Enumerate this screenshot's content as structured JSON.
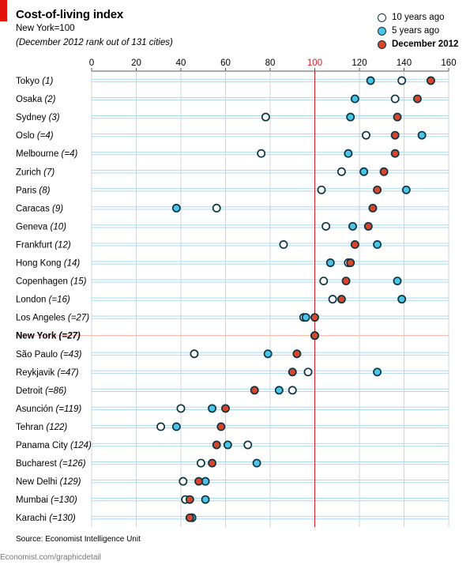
{
  "header": {
    "title": "Cost-of-living index",
    "subtitle": "New York=100",
    "note": "(December 2012 rank out of 131 cities)"
  },
  "legend": [
    {
      "label": "10 years ago",
      "fill": "#ffffff",
      "stroke": "#0d3340",
      "bold": false
    },
    {
      "label": "5 years ago",
      "fill": "#4cc4e8",
      "stroke": "#0d3340",
      "bold": false
    },
    {
      "label": "December 2012",
      "fill": "#d9452b",
      "stroke": "#0d3340",
      "bold": true
    }
  ],
  "footer": {
    "source": "Source: Economist Intelligence Unit",
    "credit": "Economist.com/graphicdetail"
  },
  "colors": {
    "ten_years": "#ffffff",
    "five_years": "#4cc4e8",
    "dec_2012": "#d9452b",
    "stroke": "#0d3340",
    "row_line": "#a9dbef",
    "reference": "#d21f26",
    "grid": "#cfd6da",
    "highlight_row": "#f5b7a8"
  },
  "chart_data": {
    "type": "scatter",
    "xlim": [
      0,
      160
    ],
    "xticks": [
      0,
      20,
      40,
      60,
      80,
      100,
      120,
      140,
      160
    ],
    "reference_x": 100,
    "grid": true,
    "legend_position": "top-right",
    "series_names": [
      "10 years ago",
      "5 years ago",
      "December 2012"
    ],
    "cities": [
      {
        "name": "Tokyo",
        "rank": "(1)",
        "ten": 139,
        "five": 125,
        "now": 152
      },
      {
        "name": "Osaka",
        "rank": "(2)",
        "ten": 136,
        "five": 118,
        "now": 146
      },
      {
        "name": "Sydney",
        "rank": "(3)",
        "ten": 78,
        "five": 116,
        "now": 137
      },
      {
        "name": "Oslo",
        "rank": "(=4)",
        "ten": 123,
        "five": 148,
        "now": 136
      },
      {
        "name": "Melbourne",
        "rank": "(=4)",
        "ten": 76,
        "five": 115,
        "now": 136
      },
      {
        "name": "Zurich",
        "rank": "(7)",
        "ten": 112,
        "five": 122,
        "now": 131
      },
      {
        "name": "Paris",
        "rank": "(8)",
        "ten": 103,
        "five": 141,
        "now": 128
      },
      {
        "name": "Caracas",
        "rank": "(9)",
        "ten": 56,
        "five": 38,
        "now": 126
      },
      {
        "name": "Geneva",
        "rank": "(10)",
        "ten": 105,
        "five": 117,
        "now": 124
      },
      {
        "name": "Frankfurt",
        "rank": "(12)",
        "ten": 86,
        "five": 128,
        "now": 118
      },
      {
        "name": "Hong Kong",
        "rank": "(14)",
        "ten": 115,
        "five": 107,
        "now": 116
      },
      {
        "name": "Copenhagen",
        "rank": "(15)",
        "ten": 104,
        "five": 137,
        "now": 114
      },
      {
        "name": "London",
        "rank": "(=16)",
        "ten": 108,
        "five": 139,
        "now": 112
      },
      {
        "name": "Los Angeles",
        "rank": "(=27)",
        "ten": 95,
        "five": 96,
        "now": 100
      },
      {
        "name": "New York",
        "rank": "(=27)",
        "ten": 100,
        "five": 100,
        "now": 100,
        "highlight": true
      },
      {
        "name": "São Paulo",
        "rank": "(=43)",
        "ten": 46,
        "five": 79,
        "now": 92
      },
      {
        "name": "Reykjavik",
        "rank": "(=47)",
        "ten": 97,
        "five": 128,
        "now": 90
      },
      {
        "name": "Detroit",
        "rank": "(=86)",
        "ten": 90,
        "five": 84,
        "now": 73
      },
      {
        "name": "Asunción",
        "rank": "(=119)",
        "ten": 40,
        "five": 54,
        "now": 60
      },
      {
        "name": "Tehran",
        "rank": "(122)",
        "ten": 31,
        "five": 38,
        "now": 58
      },
      {
        "name": "Panama City",
        "rank": "(124)",
        "ten": 70,
        "five": 61,
        "now": 56
      },
      {
        "name": "Bucharest",
        "rank": "(=126)",
        "ten": 49,
        "five": 74,
        "now": 54
      },
      {
        "name": "New Delhi",
        "rank": "(129)",
        "ten": 41,
        "five": 51,
        "now": 48
      },
      {
        "name": "Mumbai",
        "rank": "(=130)",
        "ten": 42,
        "five": 51,
        "now": 44
      },
      {
        "name": "Karachi",
        "rank": "(=130)",
        "ten": 45,
        "five": 45,
        "now": 44
      }
    ]
  }
}
